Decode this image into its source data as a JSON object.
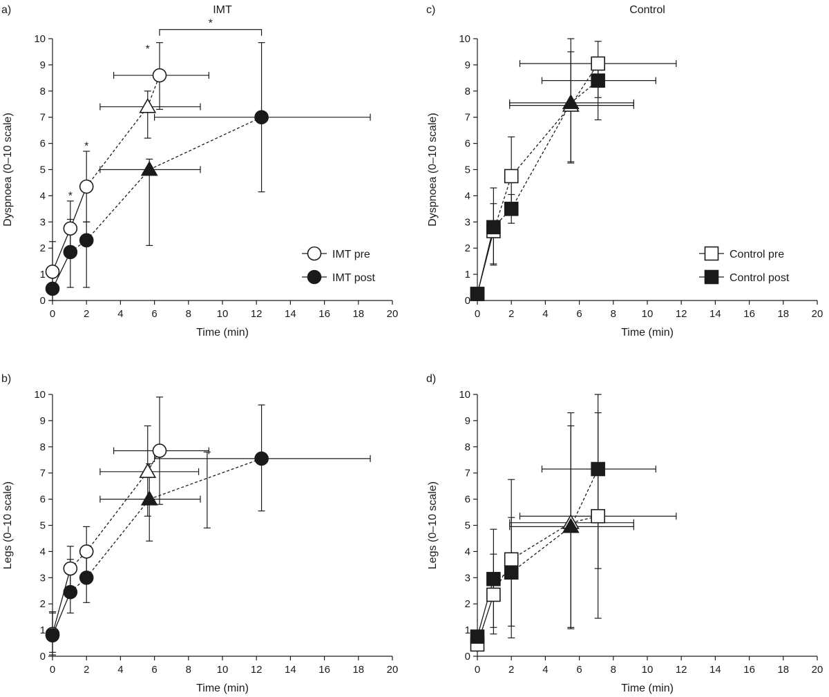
{
  "chart_data": [
    {
      "panel": "a)",
      "title": "IMT",
      "type": "scatter",
      "xlabel": "Time (min)",
      "ylabel": "Dyspnoea (0–10 scale)",
      "xlim": [
        0,
        20
      ],
      "ylim": [
        0,
        10
      ],
      "xticks": [
        "0",
        "2",
        "4",
        "6",
        "8",
        "10",
        "12",
        "14",
        "16",
        "18",
        "20"
      ],
      "yticks": [
        "0",
        "1",
        "2",
        "3",
        "4",
        "5",
        "6",
        "7",
        "8",
        "9",
        "10"
      ],
      "legend_position": "bottom-right",
      "series": [
        {
          "name": "IMT pre",
          "marker": "circle",
          "fill": "open",
          "points": [
            {
              "x": 0,
              "y": 1.1,
              "yerr": [
                0.0,
                2.25
              ],
              "xerr": null,
              "line": "solid"
            },
            {
              "x": 1.05,
              "y": 2.75,
              "yerr": [
                1.8,
                3.8
              ],
              "xerr": null,
              "line": "solid"
            },
            {
              "x": 2.0,
              "y": 4.35,
              "yerr": [
                3.0,
                5.7
              ],
              "xerr": null,
              "line": "solid"
            },
            {
              "x": 5.6,
              "y": 7.4,
              "marker": "triangle",
              "yerr": [
                6.2,
                8.0
              ],
              "xerr": [
                2.8,
                8.7
              ],
              "line": "dashed"
            },
            {
              "x": 6.3,
              "y": 8.6,
              "yerr": [
                7.3,
                9.85
              ],
              "xerr": [
                3.6,
                9.2
              ],
              "line": "dashed"
            }
          ]
        },
        {
          "name": "IMT post",
          "marker": "circle",
          "fill": "filled",
          "points": [
            {
              "x": 0,
              "y": 0.45,
              "yerr": null,
              "xerr": null,
              "line": "solid"
            },
            {
              "x": 1.05,
              "y": 1.85,
              "yerr": [
                0.5,
                3.1
              ],
              "xerr": null,
              "line": "solid"
            },
            {
              "x": 2.0,
              "y": 2.3,
              "yerr": [
                0.5,
                3.0
              ],
              "xerr": null,
              "line": "dashed"
            },
            {
              "x": 5.7,
              "y": 5.0,
              "marker": "triangle",
              "yerr": [
                2.1,
                5.4
              ],
              "xerr": [
                2.8,
                8.7
              ],
              "line": "dashed"
            },
            {
              "x": 12.3,
              "y": 7.0,
              "yerr": [
                4.15,
                9.85
              ],
              "xerr": [
                6.0,
                18.7
              ],
              "line": "dashed"
            }
          ]
        }
      ],
      "annotations": [
        {
          "text": "*",
          "x": 1.05,
          "y": 4.0
        },
        {
          "text": "*",
          "x": 2.0,
          "y": 5.9
        },
        {
          "text": "*",
          "x": 5.6,
          "y": 9.6
        },
        {
          "text": "*",
          "bracket": [
            6.3,
            12.3
          ],
          "y": 10.35
        }
      ]
    },
    {
      "panel": "b)",
      "title": "",
      "type": "scatter",
      "xlabel": "Time (min)",
      "ylabel": "Legs (0–10 scale)",
      "xlim": [
        0,
        20
      ],
      "ylim": [
        0,
        10
      ],
      "xticks": [
        "0",
        "2",
        "4",
        "6",
        "8",
        "10",
        "12",
        "14",
        "16",
        "18",
        "20"
      ],
      "yticks": [
        "0",
        "1",
        "2",
        "3",
        "4",
        "5",
        "6",
        "7",
        "8",
        "9",
        "10"
      ],
      "series": [
        {
          "name": "IMT pre",
          "marker": "circle",
          "fill": "open",
          "points": [
            {
              "x": 0,
              "y": 0.85,
              "yerr": [
                0.15,
                1.65
              ],
              "xerr": null,
              "line": "solid"
            },
            {
              "x": 1.05,
              "y": 3.35,
              "yerr": [
                2.4,
                4.2
              ],
              "xerr": null,
              "line": "solid"
            },
            {
              "x": 2.0,
              "y": 4.0,
              "yerr": [
                3.0,
                4.95
              ],
              "xerr": null,
              "line": "dashed"
            },
            {
              "x": 5.6,
              "y": 7.05,
              "marker": "triangle",
              "yerr": [
                5.35,
                8.8
              ],
              "xerr": [
                2.8,
                8.6
              ],
              "line": "dashed"
            },
            {
              "x": 6.3,
              "y": 7.85,
              "yerr": [
                5.8,
                9.9
              ],
              "xerr": [
                3.6,
                9.2
              ],
              "line": "dashed"
            }
          ]
        },
        {
          "name": "IMT post",
          "marker": "circle",
          "fill": "filled",
          "points": [
            {
              "x": 0,
              "y": 0.8,
              "yerr": [
                0.05,
                1.7
              ],
              "xerr": null,
              "line": "solid"
            },
            {
              "x": 1.05,
              "y": 2.45,
              "yerr": [
                1.65,
                3.7
              ],
              "xerr": null,
              "line": "solid"
            },
            {
              "x": 2.0,
              "y": 3.0,
              "yerr": [
                2.05,
                3.95
              ],
              "xerr": null,
              "line": "dashed"
            },
            {
              "x": 5.7,
              "y": 6.0,
              "marker": "triangle",
              "yerr": [
                4.4,
                7.35
              ],
              "xerr": [
                2.8,
                8.7
              ],
              "line": "dashed"
            },
            {
              "x": 12.3,
              "y": 7.55,
              "yerr": [
                5.55,
                9.6
              ],
              "xerr": [
                6.0,
                18.7
              ],
              "line": "dashed"
            }
          ]
        }
      ],
      "extra_errorbars": [
        {
          "x": 9.1,
          "y0": 4.9,
          "y1": 7.8
        }
      ]
    },
    {
      "panel": "c)",
      "title": "Control",
      "type": "scatter",
      "xlabel": "Time (min)",
      "ylabel": "Dyspnoea (0–10 scale)",
      "xlim": [
        0,
        20
      ],
      "ylim": [
        0,
        10
      ],
      "xticks": [
        "0",
        "2",
        "4",
        "6",
        "8",
        "10",
        "12",
        "14",
        "16",
        "18",
        "20"
      ],
      "yticks": [
        "0",
        "1",
        "2",
        "3",
        "4",
        "5",
        "6",
        "7",
        "8",
        "9",
        "10"
      ],
      "legend_position": "bottom-right",
      "series": [
        {
          "name": "Control pre",
          "marker": "square",
          "fill": "open",
          "points": [
            {
              "x": 0,
              "y": 0.25,
              "yerr": null,
              "xerr": null,
              "line": "solid"
            },
            {
              "x": 0.95,
              "y": 2.65,
              "yerr": [
                1.4,
                3.7
              ],
              "xerr": null,
              "line": "solid"
            },
            {
              "x": 2.0,
              "y": 4.75,
              "yerr": [
                3.45,
                6.25
              ],
              "xerr": null,
              "line": "dashed"
            },
            {
              "x": 5.5,
              "y": 7.45,
              "marker": "triangle",
              "yerr": [
                5.3,
                9.5
              ],
              "xerr": [
                1.9,
                9.2
              ],
              "line": "dashed"
            },
            {
              "x": 7.1,
              "y": 9.05,
              "yerr": [
                7.75,
                9.9
              ],
              "xerr": [
                2.5,
                11.7
              ],
              "line": "dashed"
            }
          ]
        },
        {
          "name": "Control post",
          "marker": "square",
          "fill": "filled",
          "points": [
            {
              "x": 0,
              "y": 0.25,
              "yerr": null,
              "xerr": null,
              "line": "solid"
            },
            {
              "x": 0.95,
              "y": 2.8,
              "yerr": [
                1.35,
                4.3
              ],
              "xerr": null,
              "line": "solid"
            },
            {
              "x": 2.0,
              "y": 3.5,
              "yerr": [
                2.95,
                4.05
              ],
              "xerr": null,
              "line": "dashed"
            },
            {
              "x": 5.5,
              "y": 7.55,
              "marker": "triangle",
              "yerr": [
                5.25,
                10.0
              ],
              "xerr": [
                1.9,
                9.2
              ],
              "line": "dashed"
            },
            {
              "x": 7.1,
              "y": 8.4,
              "yerr": [
                6.9,
                9.1
              ],
              "xerr": [
                3.8,
                10.5
              ],
              "line": "dashed"
            }
          ]
        }
      ]
    },
    {
      "panel": "d)",
      "title": "",
      "type": "scatter",
      "xlabel": "Time (min)",
      "ylabel": "Legs (0–10 scale)",
      "xlim": [
        0,
        20
      ],
      "ylim": [
        0,
        10
      ],
      "xticks": [
        "0",
        "2",
        "4",
        "6",
        "8",
        "10",
        "12",
        "14",
        "16",
        "18",
        "20"
      ],
      "yticks": [
        "0",
        "1",
        "2",
        "3",
        "4",
        "5",
        "6",
        "7",
        "8",
        "9",
        "10"
      ],
      "series": [
        {
          "name": "Control pre",
          "marker": "square",
          "fill": "open",
          "points": [
            {
              "x": 0,
              "y": 0.45,
              "yerr": null,
              "xerr": null,
              "line": "solid"
            },
            {
              "x": 0.95,
              "y": 2.35,
              "yerr": [
                0.85,
                3.9
              ],
              "xerr": null,
              "line": "solid"
            },
            {
              "x": 2.0,
              "y": 3.7,
              "yerr": [
                1.15,
                5.3
              ],
              "xerr": null,
              "line": "dashed"
            },
            {
              "x": 5.5,
              "y": 5.1,
              "marker": "triangle",
              "yerr": [
                1.1,
                9.3
              ],
              "xerr": [
                1.9,
                9.2
              ],
              "line": "dashed"
            },
            {
              "x": 7.1,
              "y": 5.35,
              "yerr": [
                3.35,
                9.3
              ],
              "xerr": [
                2.5,
                11.7
              ],
              "line": "dashed"
            }
          ]
        },
        {
          "name": "Control post",
          "marker": "square",
          "fill": "filled",
          "points": [
            {
              "x": 0,
              "y": 0.75,
              "yerr": null,
              "xerr": null,
              "line": "solid"
            },
            {
              "x": 0.95,
              "y": 2.95,
              "yerr": [
                1.1,
                4.85
              ],
              "xerr": null,
              "line": "solid"
            },
            {
              "x": 2.0,
              "y": 3.2,
              "yerr": [
                0.7,
                6.75
              ],
              "xerr": null,
              "line": "dashed"
            },
            {
              "x": 5.5,
              "y": 4.95,
              "marker": "triangle",
              "yerr": [
                1.05,
                8.8
              ],
              "xerr": [
                1.9,
                9.2
              ],
              "line": "dashed"
            },
            {
              "x": 7.1,
              "y": 7.15,
              "yerr": [
                1.45,
                10.0
              ],
              "xerr": [
                3.8,
                10.5
              ],
              "line": "dashed"
            }
          ]
        }
      ]
    }
  ]
}
